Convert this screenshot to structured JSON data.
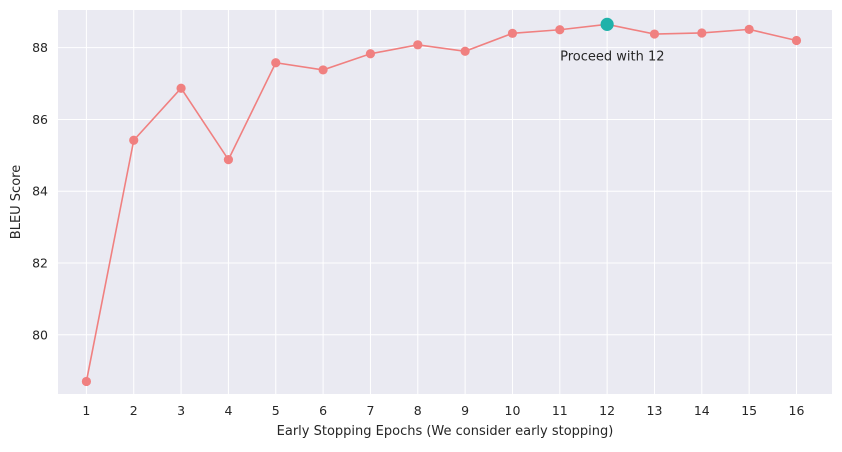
{
  "chart_data": {
    "type": "line",
    "title": "",
    "xlabel": "Early Stopping Epochs (We consider early stopping)",
    "ylabel": "BLEU Score",
    "x": [
      1,
      2,
      3,
      4,
      5,
      6,
      7,
      8,
      9,
      10,
      11,
      12,
      13,
      14,
      15,
      16
    ],
    "x_tick_labels": [
      "1",
      "2",
      "3",
      "4",
      "5",
      "6",
      "7",
      "8",
      "9",
      "10",
      "11",
      "12",
      "13",
      "14",
      "15",
      "16"
    ],
    "y_ticks": [
      80,
      82,
      84,
      86,
      88
    ],
    "y_tick_labels": [
      "80",
      "82",
      "84",
      "86",
      "88"
    ],
    "xlim": [
      0.4,
      16.75
    ],
    "ylim": [
      78.35,
      89.05
    ],
    "grid": true,
    "series": [
      {
        "values": [
          78.7,
          85.42,
          86.87,
          84.88,
          87.58,
          87.38,
          87.83,
          88.08,
          87.9,
          88.4,
          88.5,
          88.65,
          88.38,
          88.41,
          88.51,
          88.2
        ],
        "color": "#f08080"
      }
    ],
    "highlight": {
      "x": 12,
      "y": 88.65,
      "color": "#20b2aa"
    },
    "annotation": {
      "text": "Proceed with 12",
      "x": 12,
      "y": 88.65
    },
    "colors": {
      "plot_background": "#eaeaf2",
      "grid": "#ffffff",
      "line": "#f08080",
      "highlight": "#20b2aa"
    }
  }
}
